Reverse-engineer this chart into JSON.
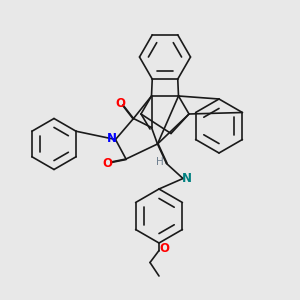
{
  "bg_color": "#e8e8e8",
  "line_color": "#1a1a1a",
  "atom_colors": {
    "O": "#ff0000",
    "N": "#0000ff",
    "N_imine": "#008080",
    "H": "#708090"
  },
  "line_width": 1.2,
  "figsize": [
    3.0,
    3.0
  ],
  "dpi": 100
}
